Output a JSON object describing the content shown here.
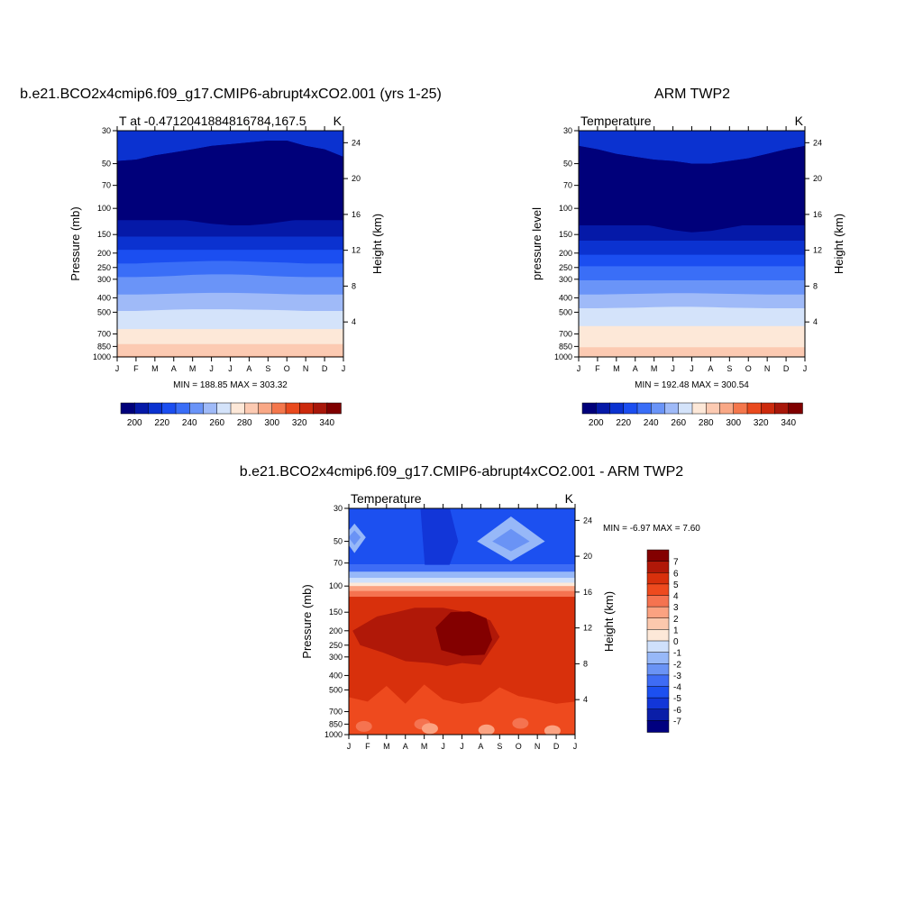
{
  "chart_data": [
    {
      "id": "model",
      "type": "heatmap",
      "title": "b.e21.BCO2x4cmip6.f09_g17.CMIP6-abrupt4xCO2.001 (yrs 1-25)",
      "subtitle_left": "T at -0.4712041884816784,167.5",
      "subtitle_right": "K",
      "ylabel": "Pressure (mb)",
      "ylabel_right": "Height (km)",
      "x_ticks": [
        "J",
        "F",
        "M",
        "A",
        "M",
        "J",
        "J",
        "A",
        "S",
        "O",
        "N",
        "D",
        "J"
      ],
      "y_ticks": [
        "30",
        "50",
        "70",
        "100",
        "150",
        "200",
        "250",
        "300",
        "400",
        "500",
        "700",
        "850",
        "1000"
      ],
      "right_ticks": [
        "24",
        "20",
        "16",
        "12",
        "8",
        "4"
      ],
      "minmax": "MIN = 188.85 MAX = 303.32",
      "colorbar": {
        "orientation": "horizontal",
        "labels": [
          "200",
          "220",
          "240",
          "260",
          "280",
          "300",
          "320",
          "340"
        ],
        "levels": [
          190,
          200,
          210,
          220,
          230,
          240,
          250,
          260,
          270,
          280,
          290,
          300,
          310,
          320,
          330,
          340,
          350
        ]
      },
      "ylim_mb": [
        30,
        1000
      ],
      "level_boundaries_mb": [
        [
          48,
          47,
          44,
          42,
          40,
          38,
          37,
          36,
          35,
          35,
          38,
          40,
          45
        ],
        [
          120,
          120,
          120,
          120,
          120,
          120,
          120,
          120,
          120,
          120,
          120,
          120,
          120
        ],
        [
          155,
          155,
          155,
          155,
          155,
          155,
          155,
          155,
          155,
          155,
          155,
          155,
          155
        ],
        [
          190,
          190,
          190,
          190,
          190,
          190,
          190,
          190,
          190,
          190,
          190,
          190,
          190
        ],
        [
          235,
          235,
          232,
          230,
          228,
          226,
          226,
          228,
          230,
          232,
          235,
          235,
          235
        ],
        [
          290,
          290,
          288,
          285,
          280,
          278,
          278,
          280,
          285,
          288,
          290,
          290,
          290
        ],
        [
          380,
          380,
          378,
          375,
          372,
          370,
          370,
          372,
          375,
          378,
          380,
          380,
          380
        ],
        [
          490,
          490,
          485,
          480,
          478,
          478,
          478,
          480,
          482,
          485,
          490,
          490,
          490
        ],
        [
          650,
          650,
          650,
          650,
          650,
          650,
          650,
          650,
          650,
          650,
          650,
          650,
          650
        ],
        [
          820,
          820,
          820,
          820,
          820,
          820,
          820,
          820,
          820,
          820,
          820,
          820,
          820
        ],
        [
          985,
          985,
          985,
          985,
          985,
          985,
          985,
          985,
          985,
          985,
          985,
          985,
          985
        ]
      ],
      "min_region": {
        "bottom_mb": [
          52,
          53,
          55,
          57,
          62,
          67,
          70,
          70,
          67,
          62,
          57,
          52,
          48
        ]
      }
    },
    {
      "id": "obs",
      "type": "heatmap",
      "title": "ARM TWP2",
      "subtitle_left": "Temperature",
      "subtitle_right": "K",
      "ylabel": "pressure level",
      "ylabel_right": "Height (km)",
      "x_ticks": [
        "J",
        "F",
        "M",
        "A",
        "M",
        "J",
        "J",
        "A",
        "S",
        "O",
        "N",
        "D",
        "J"
      ],
      "y_ticks": [
        "30",
        "50",
        "70",
        "100",
        "150",
        "200",
        "250",
        "300",
        "400",
        "500",
        "700",
        "850",
        "1000"
      ],
      "right_ticks": [
        "24",
        "20",
        "16",
        "12",
        "8",
        "4"
      ],
      "minmax": "MIN = 192.48 MAX = 300.54",
      "colorbar": {
        "orientation": "horizontal",
        "labels": [
          "200",
          "220",
          "240",
          "260",
          "280",
          "300",
          "320",
          "340"
        ],
        "levels": [
          190,
          200,
          210,
          220,
          230,
          240,
          250,
          260,
          270,
          280,
          290,
          300,
          310,
          320,
          330,
          340,
          350
        ]
      },
      "ylim_mb": [
        30,
        1000
      ],
      "level_boundaries_mb": [
        [
          38,
          40,
          43,
          45,
          47,
          48,
          50,
          50,
          48,
          46,
          43,
          40,
          38
        ],
        [
          130,
          130,
          130,
          130,
          130,
          130,
          130,
          130,
          130,
          130,
          130,
          130,
          130
        ],
        [
          165,
          165,
          165,
          165,
          165,
          165,
          165,
          165,
          165,
          165,
          165,
          165,
          165
        ],
        [
          205,
          205,
          205,
          205,
          205,
          205,
          205,
          205,
          205,
          205,
          205,
          205,
          205
        ],
        [
          245,
          245,
          245,
          245,
          245,
          245,
          245,
          245,
          245,
          245,
          245,
          245,
          245
        ],
        [
          305,
          305,
          305,
          305,
          305,
          305,
          305,
          305,
          305,
          305,
          305,
          305,
          305
        ],
        [
          380,
          380,
          378,
          376,
          374,
          372,
          372,
          374,
          376,
          378,
          380,
          380,
          380
        ],
        [
          470,
          470,
          468,
          466,
          462,
          460,
          460,
          462,
          466,
          468,
          470,
          470,
          470
        ],
        [
          620,
          620,
          620,
          620,
          620,
          620,
          620,
          620,
          620,
          620,
          620,
          620,
          620
        ],
        [
          860,
          860,
          860,
          860,
          860,
          860,
          860,
          860,
          860,
          860,
          860,
          860,
          860
        ]
      ],
      "min_region": {
        "bottom_mb": [
          55,
          58,
          62,
          66,
          72,
          80,
          85,
          82,
          75,
          68,
          62,
          58,
          55
        ]
      }
    },
    {
      "id": "diff",
      "type": "heatmap",
      "title": "b.e21.BCO2x4cmip6.f09_g17.CMIP6-abrupt4xCO2.001 - ARM TWP2",
      "subtitle_left": "Temperature",
      "subtitle_right": "K",
      "ylabel": "Pressure (mb)",
      "ylabel_right": "Height (km)",
      "x_ticks": [
        "J",
        "F",
        "M",
        "A",
        "M",
        "J",
        "J",
        "A",
        "S",
        "O",
        "N",
        "D",
        "J"
      ],
      "y_ticks": [
        "30",
        "50",
        "70",
        "100",
        "150",
        "200",
        "250",
        "300",
        "400",
        "500",
        "700",
        "850",
        "1000"
      ],
      "right_ticks": [
        "24",
        "20",
        "16",
        "12",
        "8",
        "4"
      ],
      "minmax": "MIN =  -6.97 MAX =   7.60",
      "colorbar": {
        "orientation": "vertical",
        "labels": [
          "7",
          "6",
          "5",
          "4",
          "3",
          "2",
          "1",
          "0",
          "-1",
          "-2",
          "-3",
          "-4",
          "-5",
          "-6",
          "-7"
        ],
        "levels": [
          -8,
          -7,
          -6,
          -5,
          -4,
          -3,
          -2,
          -1,
          0,
          1,
          2,
          3,
          4,
          5,
          6,
          7,
          8
        ]
      },
      "ylim_mb": [
        30,
        1000
      ],
      "regions": {
        "upper_value": -5,
        "upper_bottom_mb": 72,
        "cold_core": {
          "value": -6,
          "x": [
            2.2,
            3.0,
            3.8,
            4.1,
            5.0,
            5.8,
            5.2,
            4.0,
            2.6
          ],
          "mb": [
            25,
            25,
            30,
            95,
            95,
            50,
            25,
            25,
            25
          ]
        },
        "pale_pockets": [
          {
            "value": -3,
            "cx": 0.3,
            "cmb": 47,
            "rx": 0.6,
            "rmb_top": 38,
            "rmb_bot": 60
          },
          {
            "value": -3,
            "cx": 8.6,
            "cmb": 50,
            "rx": 1.8,
            "rmb_top": 34,
            "rmb_bot": 68
          }
        ],
        "transition": [
          {
            "value": -4,
            "top": 72,
            "bot": 80
          },
          {
            "value": -2,
            "top": 80,
            "bot": 88
          },
          {
            "value": -1,
            "top": 88,
            "bot": 95
          },
          {
            "value": 0,
            "top": 95,
            "bot": 100
          },
          {
            "value": 2,
            "top": 100,
            "bot": 108
          },
          {
            "value": 3,
            "top": 108,
            "bot": 118
          },
          {
            "value": 5,
            "top": 118,
            "bot": 128
          }
        ],
        "lower_value": 5,
        "warm_value": 6,
        "warm_outline": {
          "x": [
            0.2,
            1.5,
            2.5,
            3.5,
            5.0,
            6.0,
            7.5,
            8.0,
            7.0,
            6.0,
            5.2,
            4.3,
            3.0,
            1.8,
            0.6,
            0.2
          ],
          "mb": [
            200,
            160,
            150,
            140,
            140,
            148,
            170,
            220,
            340,
            330,
            345,
            330,
            320,
            280,
            250,
            200
          ]
        },
        "hot_value": 7,
        "hot_outline": {
          "x": [
            4.6,
            5.4,
            6.4,
            7.3,
            7.6,
            7.2,
            6.0,
            4.9,
            4.6
          ],
          "mb": [
            190,
            150,
            148,
            165,
            230,
            290,
            295,
            270,
            190
          ]
        },
        "lower_band_value": 4,
        "lower_band_top_mb": [
          560,
          600,
          470,
          620,
          460,
          580,
          620,
          600,
          480,
          550,
          580,
          620,
          600
        ],
        "spots": [
          {
            "value": 3,
            "x": 0.8,
            "mb": 880
          },
          {
            "value": 3,
            "x": 3.9,
            "mb": 850
          },
          {
            "value": 2,
            "x": 4.3,
            "mb": 910
          },
          {
            "value": 2,
            "x": 7.3,
            "mb": 930
          },
          {
            "value": 3,
            "x": 9.1,
            "mb": 840
          },
          {
            "value": 2,
            "x": 10.8,
            "mb": 940
          }
        ]
      }
    }
  ]
}
